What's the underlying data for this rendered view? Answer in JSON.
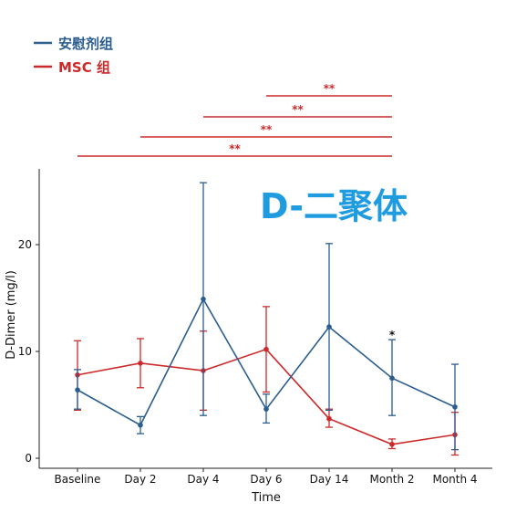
{
  "colors": {
    "placebo": "#2b5d8f",
    "msc": "#cc2a2a",
    "overlay_title": "#1f9be0",
    "axis": "#222222"
  },
  "legend": {
    "items": [
      {
        "label": "安慰剂组",
        "series": "placebo"
      },
      {
        "label": "MSC 组",
        "series": "msc"
      }
    ]
  },
  "overlay_title": "D-二聚体",
  "chart_data": {
    "type": "line",
    "xlabel": "Time",
    "ylabel": "D-Dimer (mg/l)",
    "categories": [
      "Baseline",
      "Day 2",
      "Day 4",
      "Day 6",
      "Day 14",
      "Month 2",
      "Month  4"
    ],
    "ylim": [
      -1,
      27.5
    ],
    "yticks": [
      0,
      10,
      20
    ],
    "grid": false,
    "legend_position": "top-left",
    "series": [
      {
        "name": "安慰剂组",
        "key": "placebo",
        "values": [
          6.4,
          3.1,
          14.9,
          4.6,
          12.3,
          7.5,
          4.8
        ],
        "err_low": [
          4.6,
          2.3,
          4.0,
          3.3,
          4.5,
          4.0,
          0.8
        ],
        "err_high": [
          8.3,
          3.9,
          25.8,
          6.0,
          20.1,
          11.1,
          8.8
        ]
      },
      {
        "name": "MSC 组",
        "key": "msc",
        "values": [
          7.8,
          8.9,
          8.2,
          10.2,
          3.7,
          1.3,
          2.2
        ],
        "err_low": [
          4.5,
          6.6,
          4.5,
          6.2,
          2.9,
          0.9,
          0.3
        ],
        "err_high": [
          11.0,
          11.2,
          11.9,
          14.2,
          4.6,
          1.8,
          4.3
        ]
      }
    ],
    "significance_brackets": [
      {
        "from": "Day 6",
        "to": "Month 2",
        "label": "**"
      },
      {
        "from": "Day 4",
        "to": "Month 2",
        "label": "**"
      },
      {
        "from": "Day 2",
        "to": "Month 2",
        "label": "**"
      },
      {
        "from": "Baseline",
        "to": "Month 2",
        "label": "**"
      }
    ],
    "point_annotations": [
      {
        "category": "Month 2",
        "label": "*"
      }
    ]
  }
}
